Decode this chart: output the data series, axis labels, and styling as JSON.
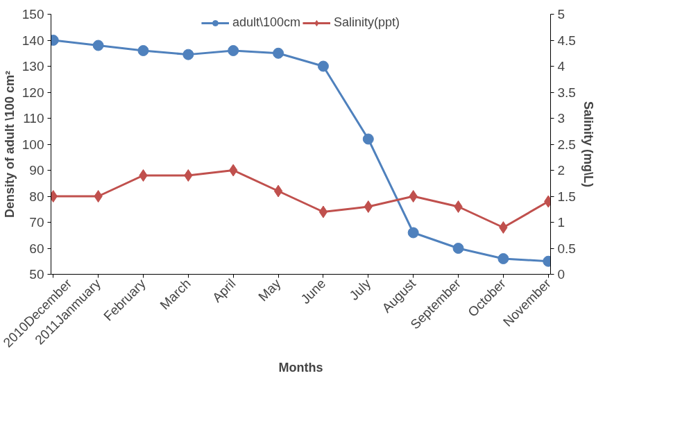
{
  "chart_data": {
    "type": "line",
    "xlabel": "Months",
    "ylabel": "Density of adult \\100 cm²",
    "y2label": "Salinity (mg\\L)",
    "categories": [
      "2010December",
      "2011Janmuary",
      "February",
      "March",
      "April",
      "May",
      "June",
      "July",
      "August",
      "September",
      "October",
      "November"
    ],
    "series": [
      {
        "name": "adult\\100cm",
        "color": "#4f81bd",
        "marker": "circle",
        "values": [
          140,
          138,
          136,
          134.5,
          136,
          135,
          130,
          102,
          66,
          60,
          56,
          55
        ]
      },
      {
        "name": "Salinity(ppt)",
        "color": "#c0504d",
        "marker": "diamond",
        "axis": "y2",
        "values": [
          1.5,
          1.5,
          1.9,
          1.9,
          2.0,
          1.6,
          1.2,
          1.3,
          1.5,
          1.3,
          0.9,
          1.4
        ]
      }
    ],
    "ylim": [
      50,
      150
    ],
    "yticks": [
      50,
      60,
      70,
      80,
      90,
      100,
      110,
      120,
      130,
      140,
      150
    ],
    "y2lim": [
      0,
      5
    ],
    "y2ticks": [
      0,
      0.5,
      1,
      1.5,
      2,
      2.5,
      3,
      3.5,
      4,
      4.5,
      5
    ],
    "grid": false,
    "legend": "top"
  }
}
